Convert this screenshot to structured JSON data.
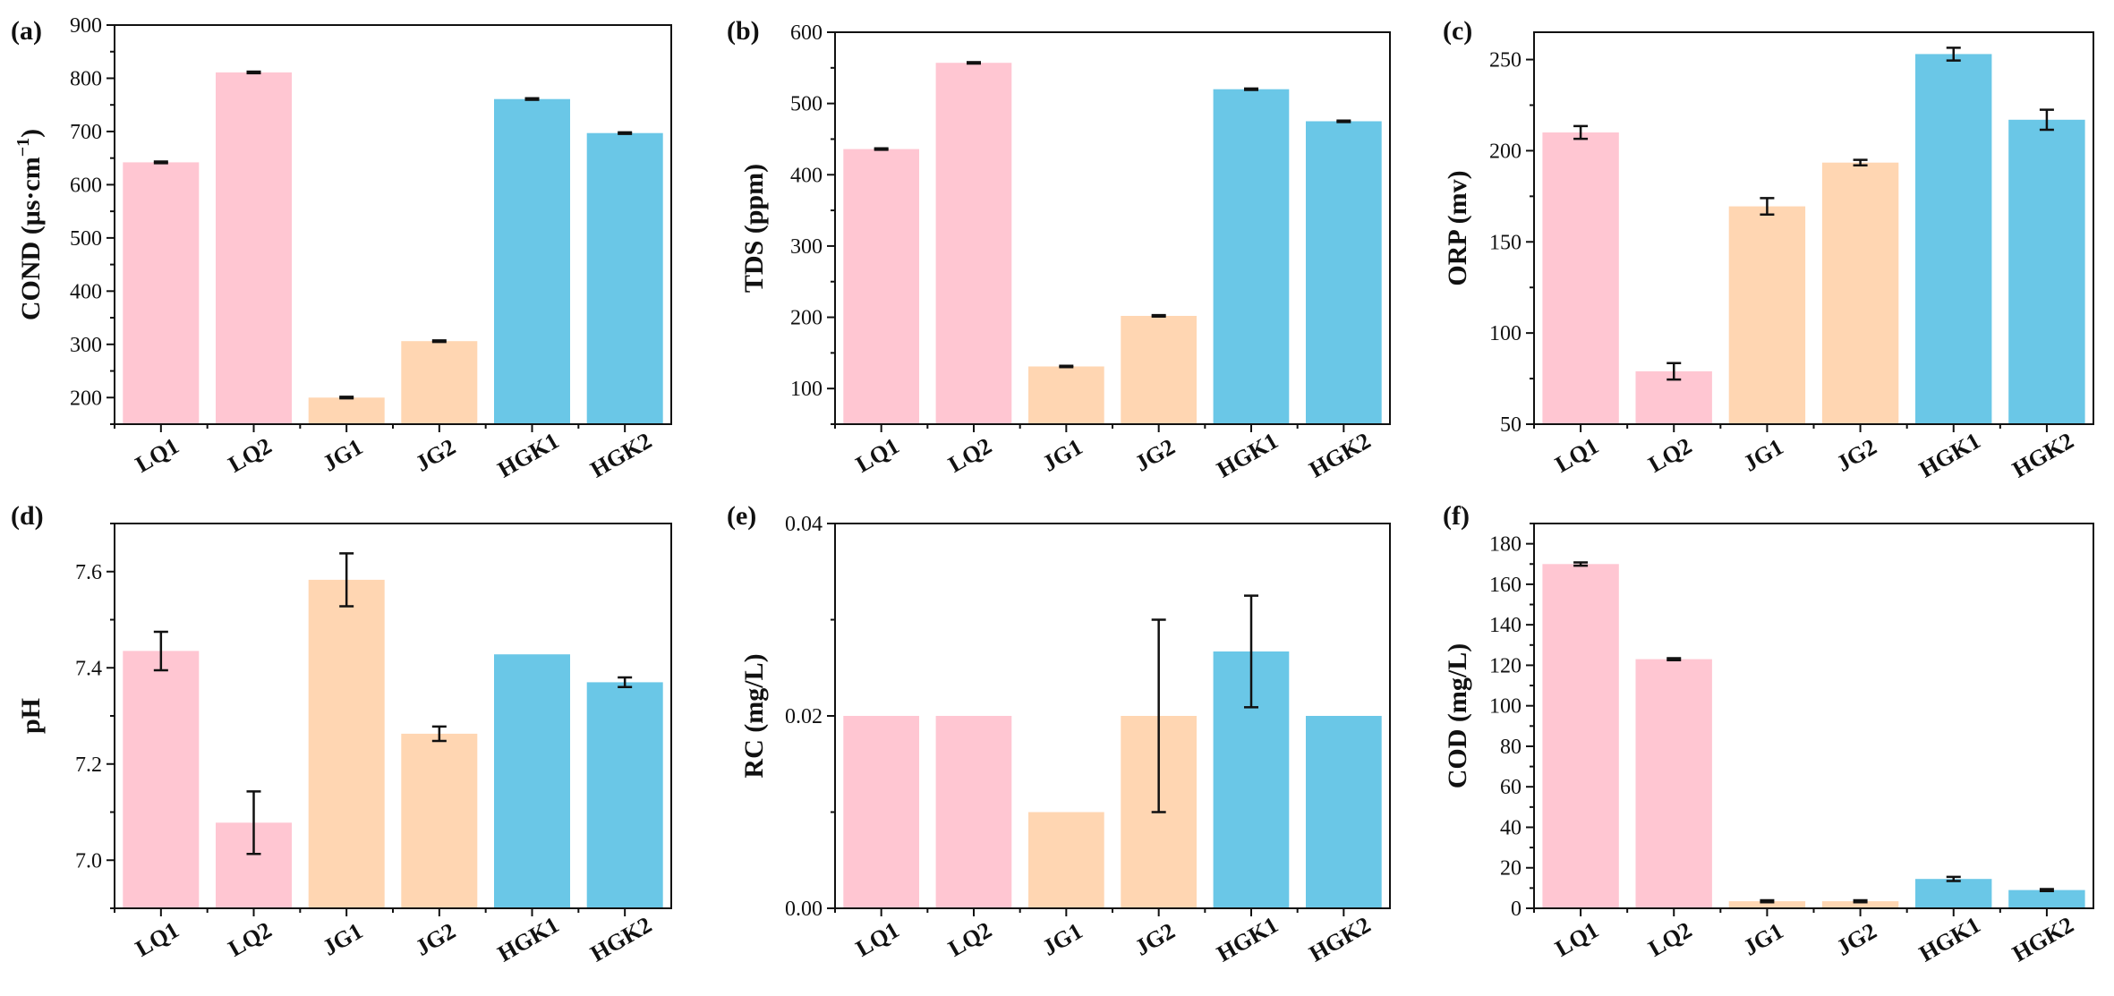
{
  "colors": {
    "pink": "#FFC6D2",
    "peach": "#FFD6B2",
    "blue": "#6AC7E7",
    "axis": "#111111"
  },
  "chart_data": [
    {
      "type": "bar",
      "panel": "(a)",
      "ylabel": "COND (μs·cm",
      "ylabel_sup": "−1",
      "ylabel_close": ")",
      "categories": [
        "LQ1",
        "LQ2",
        "JG1",
        "JG2",
        "HGK1",
        "HGK2"
      ],
      "values": [
        642,
        811,
        200,
        306,
        761,
        697
      ],
      "errors": [
        1.5,
        1.5,
        1.5,
        1.5,
        1.5,
        1.5
      ],
      "bar_colors": [
        "pink",
        "pink",
        "peach",
        "peach",
        "blue",
        "blue"
      ],
      "ylim": [
        150,
        900
      ],
      "yticks": [
        200,
        300,
        400,
        500,
        600,
        700,
        800,
        900
      ],
      "ytick_labels": [
        "200",
        "300",
        "400",
        "500",
        "600",
        "700",
        "800",
        "900"
      ],
      "minor": true
    },
    {
      "type": "bar",
      "panel": "(b)",
      "ylabel": "TDS (ppm)",
      "categories": [
        "LQ1",
        "LQ2",
        "JG1",
        "JG2",
        "HGK1",
        "HGK2"
      ],
      "values": [
        436,
        557,
        131,
        202,
        520,
        475
      ],
      "errors": [
        1,
        1,
        1,
        1,
        1,
        1
      ],
      "bar_colors": [
        "pink",
        "pink",
        "peach",
        "peach",
        "blue",
        "blue"
      ],
      "ylim": [
        50,
        600
      ],
      "yticks": [
        100,
        200,
        300,
        400,
        500,
        600
      ],
      "ytick_labels": [
        "100",
        "200",
        "300",
        "400",
        "500",
        "600"
      ],
      "minor": true
    },
    {
      "type": "bar",
      "panel": "(c)",
      "ylabel": "ORP (mv)",
      "categories": [
        "LQ1",
        "LQ2",
        "JG1",
        "JG2",
        "HGK1",
        "HGK2"
      ],
      "values": [
        210,
        79,
        169.5,
        193.5,
        253,
        217
      ],
      "errors": [
        3.5,
        4.5,
        4.5,
        1.5,
        3.5,
        5.5
      ],
      "bar_colors": [
        "pink",
        "pink",
        "peach",
        "peach",
        "blue",
        "blue"
      ],
      "ylim": [
        50,
        265
      ],
      "yticks": [
        50,
        100,
        150,
        200,
        250
      ],
      "ytick_labels": [
        "50",
        "100",
        "150",
        "200",
        "250"
      ],
      "minor": true
    },
    {
      "type": "bar",
      "panel": "(d)",
      "ylabel": "pH",
      "categories": [
        "LQ1",
        "LQ2",
        "JG1",
        "JG2",
        "HGK1",
        "HGK2"
      ],
      "values": [
        7.435,
        7.078,
        7.583,
        7.263,
        7.428,
        7.37
      ],
      "errors": [
        0.04,
        0.065,
        0.055,
        0.015,
        0,
        0.01
      ],
      "bar_colors": [
        "pink",
        "pink",
        "peach",
        "peach",
        "blue",
        "blue"
      ],
      "ylim": [
        6.9,
        7.7
      ],
      "yticks": [
        7.0,
        7.2,
        7.4,
        7.6
      ],
      "ytick_labels": [
        "7.0",
        "7.2",
        "7.4",
        "7.6"
      ],
      "minor": true
    },
    {
      "type": "bar",
      "panel": "(e)",
      "ylabel": "RC (mg/L)",
      "categories": [
        "LQ1",
        "LQ2",
        "JG1",
        "JG2",
        "HGK1",
        "HGK2"
      ],
      "values": [
        0.02,
        0.02,
        0.01,
        0.02,
        0.0267,
        0.02
      ],
      "errors": [
        0,
        0,
        0,
        0.01,
        0.0058,
        0
      ],
      "bar_colors": [
        "pink",
        "pink",
        "peach",
        "peach",
        "blue",
        "blue"
      ],
      "ylim": [
        0,
        0.04
      ],
      "yticks": [
        0,
        0.02,
        0.04
      ],
      "ytick_labels": [
        "0.00",
        "0.02",
        "0.04"
      ],
      "minor": true
    },
    {
      "type": "bar",
      "panel": "(f)",
      "ylabel": "COD (mg/L)",
      "categories": [
        "LQ1",
        "LQ2",
        "JG1",
        "JG2",
        "HGK1",
        "HGK2"
      ],
      "values": [
        170,
        123,
        3.5,
        3.5,
        14.5,
        9
      ],
      "errors": [
        0.8,
        0.5,
        0.5,
        0.5,
        1,
        0.5
      ],
      "bar_colors": [
        "pink",
        "pink",
        "peach",
        "peach",
        "blue",
        "blue"
      ],
      "ylim": [
        0,
        190
      ],
      "yticks": [
        0,
        20,
        40,
        60,
        80,
        100,
        120,
        140,
        160,
        180
      ],
      "ytick_labels": [
        "0",
        "20",
        "40",
        "60",
        "80",
        "100",
        "120",
        "140",
        "160",
        "180"
      ],
      "minor": true
    }
  ]
}
